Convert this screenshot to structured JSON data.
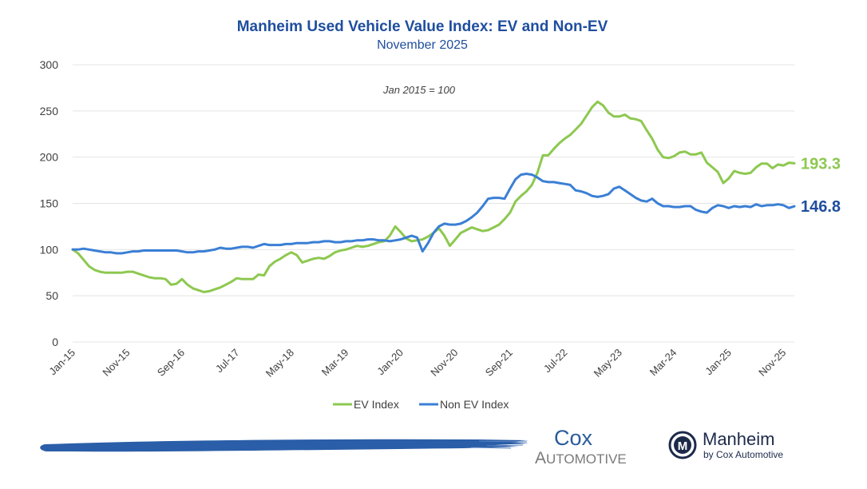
{
  "chart_data": {
    "type": "line",
    "title": "Manheim Used Vehicle Value Index: EV and Non-EV",
    "subtitle": "November 2025",
    "annotation": "Jan 2015 = 100",
    "xlabel": "",
    "ylabel": "",
    "ylim": [
      0,
      300
    ],
    "yticks": [
      0,
      50,
      100,
      150,
      200,
      250,
      300
    ],
    "grid": true,
    "legend_position": "bottom-center",
    "x_start": "Jan-15",
    "x_end": "Nov-25",
    "x_tick_labels": [
      "Jan-15",
      "Nov-15",
      "Sep-16",
      "Jul-17",
      "May-18",
      "Mar-19",
      "Jan-20",
      "Nov-20",
      "Sep-21",
      "Jul-22",
      "May-23",
      "Mar-24",
      "Jan-25",
      "Nov-25"
    ],
    "x_tick_month_index": [
      0,
      10,
      20,
      30,
      40,
      50,
      60,
      70,
      80,
      90,
      100,
      110,
      120,
      130
    ],
    "series": [
      {
        "name": "EV Index",
        "color": "#8dc850",
        "end_label": "193.3",
        "values": [
          100,
          96,
          89,
          82,
          78,
          76,
          75,
          75,
          75,
          75,
          76,
          76,
          74,
          72,
          70,
          69,
          69,
          68,
          62,
          63,
          68,
          62,
          58,
          56,
          54,
          55,
          57,
          59,
          62,
          65,
          69,
          68,
          68,
          68,
          73,
          72,
          82,
          87,
          90,
          94,
          97,
          94,
          86,
          88,
          90,
          91,
          90,
          93,
          97,
          99,
          100,
          102,
          104,
          103,
          104,
          106,
          108,
          109,
          115,
          125,
          119,
          112,
          109,
          110,
          111,
          114,
          118,
          123,
          115,
          104,
          111,
          118,
          121,
          124,
          122,
          120,
          121,
          124,
          127,
          133,
          140,
          152,
          158,
          163,
          170,
          183,
          202,
          202,
          209,
          215,
          220,
          224,
          230,
          236,
          245,
          254,
          260,
          256,
          248,
          244,
          244,
          246,
          242,
          241,
          239,
          229,
          220,
          208,
          200,
          199,
          201,
          205,
          206,
          203,
          203,
          205,
          194,
          189,
          184,
          172,
          177,
          185,
          183,
          182,
          183,
          189,
          193,
          193,
          188,
          192,
          191,
          194,
          193.3
        ]
      },
      {
        "name": "Non EV Index",
        "color": "#3a7fd5",
        "end_label": "146.8",
        "values": [
          100,
          100,
          101,
          100,
          99,
          98,
          97,
          97,
          96,
          96,
          97,
          98,
          98,
          99,
          99,
          99,
          99,
          99,
          99,
          99,
          98,
          97,
          97,
          98,
          98,
          99,
          100,
          102,
          101,
          101,
          102,
          103,
          103,
          102,
          104,
          106,
          105,
          105,
          105,
          106,
          106,
          107,
          107,
          107,
          108,
          108,
          109,
          109,
          108,
          108,
          109,
          109,
          110,
          110,
          111,
          111,
          110,
          110,
          109,
          110,
          111,
          113,
          115,
          113,
          98,
          107,
          118,
          125,
          128,
          127,
          127,
          128,
          131,
          135,
          140,
          147,
          155,
          156,
          156,
          155,
          166,
          176,
          181,
          182,
          181,
          178,
          174,
          173,
          173,
          172,
          171,
          170,
          164,
          163,
          161,
          158,
          157,
          158,
          160,
          166,
          168,
          164,
          160,
          156,
          153,
          152,
          155,
          150,
          147,
          147,
          146,
          146,
          147,
          147,
          143,
          141,
          140,
          145,
          148,
          147,
          145,
          147,
          146,
          147,
          146,
          149,
          147,
          148,
          148,
          149,
          148,
          145,
          146.8
        ]
      }
    ]
  },
  "legend": {
    "items": [
      {
        "label": "EV Index",
        "color": "#8dc850"
      },
      {
        "label": "Non EV Index",
        "color": "#3a7fd5"
      }
    ]
  },
  "footer": {
    "cox_logo_top": "Cox",
    "cox_logo_bottom": "Automotive",
    "manheim_logo_top": "Manheim",
    "manheim_logo_bottom": "by Cox Automotive",
    "manheim_icon_letter": "M",
    "brush_color": "#2a5ea8"
  }
}
